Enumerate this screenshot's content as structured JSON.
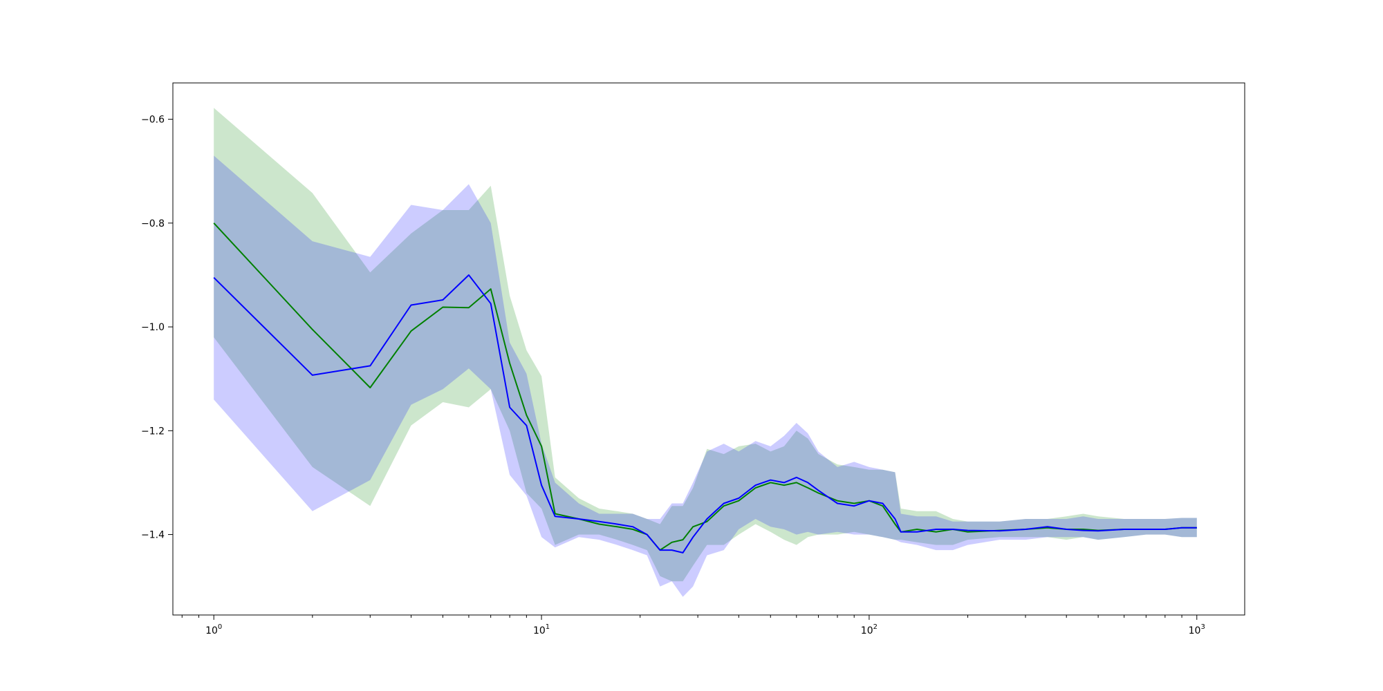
{
  "chart_data": {
    "type": "line",
    "title": "",
    "xlabel": "",
    "ylabel": "",
    "xscale": "log",
    "xlim": [
      0.75,
      1400
    ],
    "ylim": [
      -1.555,
      -0.53
    ],
    "grid": false,
    "x_ticks": [
      {
        "value": 1,
        "base": "10",
        "exp": "0"
      },
      {
        "value": 10,
        "base": "10",
        "exp": "1"
      },
      {
        "value": 100,
        "base": "10",
        "exp": "2"
      },
      {
        "value": 1000,
        "base": "10",
        "exp": "3"
      }
    ],
    "y_ticks": [
      {
        "value": -0.6,
        "label": "−0.6"
      },
      {
        "value": -0.8,
        "label": "−0.8"
      },
      {
        "value": -1.0,
        "label": "−1.0"
      },
      {
        "value": -1.2,
        "label": "−1.2"
      },
      {
        "value": -1.4,
        "label": "−1.4"
      }
    ],
    "series": [
      {
        "color": "#008000",
        "band_color": "#008000",
        "band_opacity": 0.2,
        "x": [
          1,
          2,
          3,
          4,
          5,
          6,
          7,
          8,
          9,
          10,
          11,
          13,
          15,
          17,
          19,
          21,
          23,
          25,
          27,
          29,
          32,
          36,
          40,
          45,
          50,
          55,
          60,
          65,
          70,
          80,
          90,
          100,
          110,
          120,
          125,
          140,
          160,
          180,
          200,
          250,
          300,
          350,
          400,
          450,
          500,
          600,
          700,
          800,
          900,
          1000
        ],
        "y": [
          -0.8,
          -1.005,
          -1.117,
          -1.008,
          -0.962,
          -0.963,
          -0.927,
          -1.07,
          -1.17,
          -1.23,
          -1.36,
          -1.37,
          -1.38,
          -1.385,
          -1.39,
          -1.4,
          -1.43,
          -1.415,
          -1.41,
          -1.385,
          -1.375,
          -1.345,
          -1.335,
          -1.31,
          -1.3,
          -1.305,
          -1.3,
          -1.31,
          -1.32,
          -1.335,
          -1.34,
          -1.335,
          -1.345,
          -1.38,
          -1.395,
          -1.39,
          -1.395,
          -1.39,
          -1.395,
          -1.392,
          -1.39,
          -1.387,
          -1.39,
          -1.39,
          -1.392,
          -1.39,
          -1.39,
          -1.39,
          -1.387,
          -1.387
        ],
        "lower": [
          -1.02,
          -1.27,
          -1.345,
          -1.19,
          -1.145,
          -1.155,
          -1.12,
          -1.2,
          -1.32,
          -1.35,
          -1.42,
          -1.4,
          -1.4,
          -1.41,
          -1.42,
          -1.43,
          -1.48,
          -1.49,
          -1.49,
          -1.46,
          -1.42,
          -1.42,
          -1.4,
          -1.38,
          -1.395,
          -1.41,
          -1.42,
          -1.405,
          -1.4,
          -1.4,
          -1.395,
          -1.4,
          -1.405,
          -1.41,
          -1.41,
          -1.415,
          -1.42,
          -1.42,
          -1.41,
          -1.405,
          -1.405,
          -1.405,
          -1.41,
          -1.405,
          -1.41,
          -1.405,
          -1.4,
          -1.4,
          -1.405,
          -1.405
        ],
        "upper": [
          -0.578,
          -0.742,
          -0.895,
          -0.82,
          -0.775,
          -0.775,
          -0.728,
          -0.94,
          -1.045,
          -1.095,
          -1.29,
          -1.33,
          -1.35,
          -1.355,
          -1.36,
          -1.37,
          -1.38,
          -1.345,
          -1.345,
          -1.31,
          -1.235,
          -1.245,
          -1.23,
          -1.225,
          -1.24,
          -1.23,
          -1.2,
          -1.215,
          -1.245,
          -1.265,
          -1.27,
          -1.275,
          -1.275,
          -1.28,
          -1.35,
          -1.355,
          -1.355,
          -1.37,
          -1.375,
          -1.375,
          -1.37,
          -1.37,
          -1.365,
          -1.36,
          -1.365,
          -1.37,
          -1.37,
          -1.37,
          -1.368,
          -1.368
        ]
      },
      {
        "color": "#0000ff",
        "band_color": "#0000ff",
        "band_opacity": 0.2,
        "x": [
          1,
          2,
          3,
          4,
          5,
          6,
          7,
          8,
          9,
          10,
          11,
          13,
          15,
          17,
          19,
          21,
          23,
          25,
          27,
          29,
          32,
          36,
          40,
          45,
          50,
          55,
          60,
          65,
          70,
          80,
          90,
          100,
          110,
          120,
          125,
          140,
          160,
          180,
          200,
          250,
          300,
          350,
          400,
          450,
          500,
          600,
          700,
          800,
          900,
          1000
        ],
        "y": [
          -0.905,
          -1.093,
          -1.075,
          -0.958,
          -0.948,
          -0.9,
          -0.955,
          -1.155,
          -1.19,
          -1.305,
          -1.365,
          -1.37,
          -1.375,
          -1.38,
          -1.385,
          -1.4,
          -1.43,
          -1.43,
          -1.435,
          -1.405,
          -1.37,
          -1.34,
          -1.33,
          -1.305,
          -1.295,
          -1.3,
          -1.29,
          -1.3,
          -1.315,
          -1.34,
          -1.345,
          -1.335,
          -1.34,
          -1.37,
          -1.395,
          -1.395,
          -1.39,
          -1.39,
          -1.392,
          -1.393,
          -1.39,
          -1.385,
          -1.39,
          -1.392,
          -1.393,
          -1.39,
          -1.39,
          -1.39,
          -1.387,
          -1.387
        ],
        "lower": [
          -1.14,
          -1.355,
          -1.295,
          -1.15,
          -1.12,
          -1.08,
          -1.12,
          -1.285,
          -1.325,
          -1.405,
          -1.425,
          -1.405,
          -1.41,
          -1.42,
          -1.43,
          -1.44,
          -1.5,
          -1.49,
          -1.52,
          -1.5,
          -1.44,
          -1.43,
          -1.39,
          -1.37,
          -1.385,
          -1.39,
          -1.4,
          -1.395,
          -1.4,
          -1.395,
          -1.4,
          -1.4,
          -1.405,
          -1.41,
          -1.415,
          -1.42,
          -1.43,
          -1.43,
          -1.42,
          -1.41,
          -1.41,
          -1.405,
          -1.405,
          -1.405,
          -1.41,
          -1.405,
          -1.4,
          -1.4,
          -1.405,
          -1.405
        ],
        "upper": [
          -0.67,
          -0.835,
          -0.865,
          -0.765,
          -0.775,
          -0.725,
          -0.8,
          -1.03,
          -1.09,
          -1.225,
          -1.3,
          -1.34,
          -1.36,
          -1.36,
          -1.36,
          -1.37,
          -1.37,
          -1.34,
          -1.34,
          -1.3,
          -1.24,
          -1.225,
          -1.24,
          -1.22,
          -1.23,
          -1.21,
          -1.185,
          -1.205,
          -1.24,
          -1.27,
          -1.26,
          -1.27,
          -1.275,
          -1.28,
          -1.36,
          -1.365,
          -1.365,
          -1.375,
          -1.375,
          -1.375,
          -1.37,
          -1.37,
          -1.37,
          -1.365,
          -1.37,
          -1.37,
          -1.37,
          -1.37,
          -1.368,
          -1.368
        ]
      }
    ]
  }
}
